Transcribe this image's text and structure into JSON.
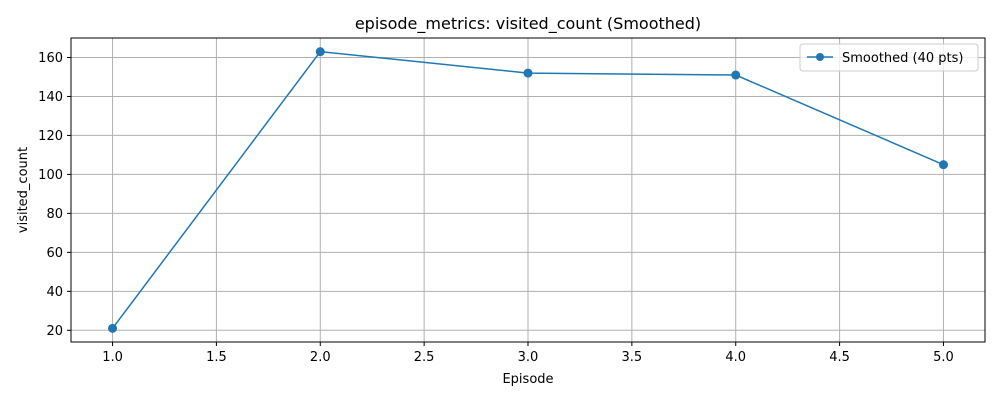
{
  "chart_data": {
    "type": "line",
    "title": "episode_metrics: visited_count (Smoothed)",
    "xlabel": "Episode",
    "ylabel": "visited_count",
    "xlim": [
      0.8,
      5.2
    ],
    "ylim": [
      14,
      170
    ],
    "xticks": [
      1.0,
      1.5,
      2.0,
      2.5,
      3.0,
      3.5,
      4.0,
      4.5,
      5.0
    ],
    "xtick_labels": [
      "1.0",
      "1.5",
      "2.0",
      "2.5",
      "3.0",
      "3.5",
      "4.0",
      "4.5",
      "5.0"
    ],
    "yticks": [
      20,
      40,
      60,
      80,
      100,
      120,
      140,
      160
    ],
    "ytick_labels": [
      "20",
      "40",
      "60",
      "80",
      "100",
      "120",
      "140",
      "160"
    ],
    "grid": true,
    "legend_position": "top-right",
    "series": [
      {
        "name": "Smoothed (40 pts)",
        "color": "#1f77b4",
        "marker": "circle",
        "x": [
          1,
          2,
          3,
          4,
          5
        ],
        "y": [
          21,
          163,
          152,
          151,
          105
        ]
      }
    ]
  }
}
